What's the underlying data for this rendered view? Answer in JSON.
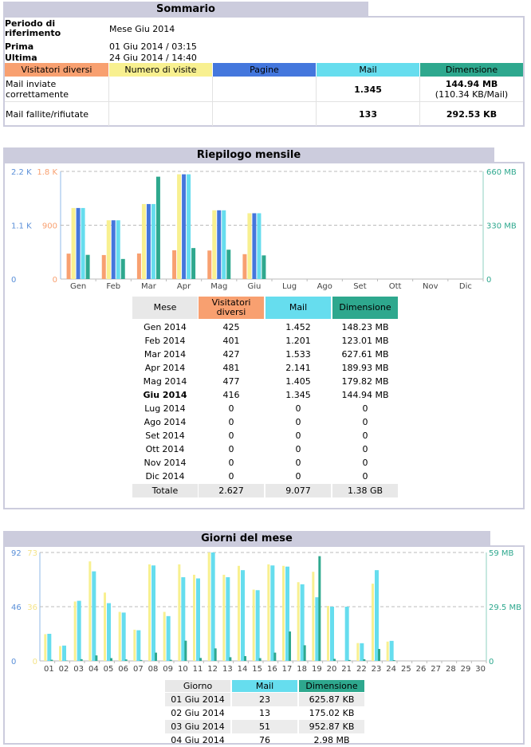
{
  "summary": {
    "title": "Sommario",
    "period_label": "Periodo di riferimento",
    "period_label_1": "Periodo di",
    "period_label_2": "riferimento",
    "period_value": "Mese Giu 2014",
    "first_label": "Prima",
    "first_value": "01 Giu 2014 / 03:15",
    "last_label": "Ultima",
    "last_value": "24 Giu 2014 / 14:40",
    "headers": [
      "Visitatori diversi",
      "Numero di visite",
      "Pagine",
      "Mail",
      "Dimensione"
    ],
    "rows": [
      {
        "label_1": "Mail inviate",
        "label_2": "correttamente",
        "mail": "1.345",
        "size": "144.94 MB",
        "size_sub": "(110.34 KB/Mail)"
      },
      {
        "label_1": "Mail fallite/rifiutate",
        "label_2": "",
        "mail": "133",
        "size": "292.53 KB",
        "size_sub": ""
      }
    ]
  },
  "colors": {
    "visitors": "#f8a070",
    "visits": "#f8f090",
    "pages": "#4477dd",
    "mail": "#66ddee",
    "size": "#2ea88e",
    "frame": "#ccccdd"
  },
  "monthly": {
    "title": "Riepilogo mensile",
    "table_headers": [
      "Mese",
      "Visitatori diversi",
      "Mail",
      "Dimensione"
    ],
    "rows": [
      [
        "Gen 2014",
        "425",
        "1.452",
        "148.23 MB"
      ],
      [
        "Feb 2014",
        "401",
        "1.201",
        "123.01 MB"
      ],
      [
        "Mar 2014",
        "427",
        "1.533",
        "627.61 MB"
      ],
      [
        "Apr 2014",
        "481",
        "2.141",
        "189.93 MB"
      ],
      [
        "Mag 2014",
        "477",
        "1.405",
        "179.82 MB"
      ],
      [
        "Giu 2014",
        "416",
        "1.345",
        "144.94 MB"
      ],
      [
        "Lug 2014",
        "0",
        "0",
        "0"
      ],
      [
        "Ago 2014",
        "0",
        "0",
        "0"
      ],
      [
        "Set 2014",
        "0",
        "0",
        "0"
      ],
      [
        "Ott 2014",
        "0",
        "0",
        "0"
      ],
      [
        "Nov 2014",
        "0",
        "0",
        "0"
      ],
      [
        "Dic 2014",
        "0",
        "0",
        "0"
      ]
    ],
    "total": [
      "Totale",
      "2.627",
      "9.077",
      "1.38 GB"
    ]
  },
  "daily": {
    "title": "Giorni del mese",
    "table_headers": [
      "Giorno",
      "Mail",
      "Dimensione"
    ],
    "rows": [
      [
        "01 Giu 2014",
        "23",
        "625.87 KB"
      ],
      [
        "02 Giu 2014",
        "13",
        "175.02 KB"
      ],
      [
        "03 Giu 2014",
        "51",
        "952.87 KB"
      ],
      [
        "04 Giu 2014",
        "76",
        "2.98 MB"
      ]
    ]
  },
  "chart_data": [
    {
      "type": "bar",
      "categories": [
        "Gen",
        "Feb",
        "Mar",
        "Apr",
        "Mag",
        "Giu",
        "Lug",
        "Ago",
        "Set",
        "Ott",
        "Nov",
        "Dic"
      ],
      "axis_left_outer": {
        "ticks": [
          "0",
          "1.1 K",
          "2.2 K"
        ],
        "max": 2200
      },
      "axis_left_inner": {
        "ticks": [
          "0",
          "900",
          "1.8 K"
        ],
        "max": 1800
      },
      "axis_right": {
        "ticks": [
          "0",
          "330 MB",
          "660 MB"
        ],
        "max": 660
      },
      "series": [
        {
          "name": "Visitatori diversi",
          "axis": "left_inner",
          "values": [
            425,
            401,
            427,
            481,
            477,
            416,
            0,
            0,
            0,
            0,
            0,
            0
          ]
        },
        {
          "name": "Numero di visite",
          "axis": "left_outer",
          "values": [
            1452,
            1201,
            1533,
            2141,
            1405,
            1345,
            0,
            0,
            0,
            0,
            0,
            0
          ]
        },
        {
          "name": "Pagine",
          "axis": "left_outer",
          "values": [
            1452,
            1201,
            1533,
            2141,
            1405,
            1345,
            0,
            0,
            0,
            0,
            0,
            0
          ]
        },
        {
          "name": "Mail",
          "axis": "left_outer",
          "values": [
            1452,
            1201,
            1533,
            2141,
            1405,
            1345,
            0,
            0,
            0,
            0,
            0,
            0
          ]
        },
        {
          "name": "Dimensione",
          "axis": "right",
          "values": [
            148.23,
            123.01,
            627.61,
            189.93,
            179.82,
            144.94,
            0,
            0,
            0,
            0,
            0,
            0
          ]
        }
      ],
      "grid": true
    },
    {
      "type": "bar",
      "categories": [
        "01",
        "02",
        "03",
        "04",
        "05",
        "06",
        "07",
        "08",
        "09",
        "10",
        "11",
        "12",
        "13",
        "14",
        "15",
        "16",
        "17",
        "18",
        "19",
        "20",
        "21",
        "22",
        "23",
        "24",
        "25",
        "26",
        "27",
        "28",
        "29",
        "30"
      ],
      "axis_left_outer": {
        "ticks": [
          "0",
          "46",
          "92"
        ],
        "max": 92
      },
      "axis_left_inner": {
        "ticks": [
          "0",
          "36",
          "73"
        ],
        "max": 73
      },
      "axis_right": {
        "ticks": [
          "0",
          "29.5 MB",
          "59 MB"
        ],
        "max": 59
      },
      "series": [
        {
          "name": "Numero di visite",
          "axis": "left_inner",
          "values": [
            18,
            10,
            40,
            67,
            46,
            33,
            21,
            65,
            33,
            65,
            58,
            73,
            58,
            64,
            48,
            65,
            64,
            53,
            60,
            37,
            0,
            12,
            52,
            13,
            0,
            0,
            0,
            0,
            0,
            0
          ]
        },
        {
          "name": "Mail",
          "axis": "left_outer",
          "values": [
            23,
            13,
            51,
            76,
            49,
            41,
            26,
            81,
            38,
            71,
            70,
            92,
            71,
            77,
            60,
            81,
            80,
            65,
            54,
            46,
            46,
            15,
            77,
            17,
            0,
            0,
            0,
            0,
            0,
            0
          ]
        },
        {
          "name": "Dimensione",
          "axis": "right",
          "values": [
            0.61,
            0.17,
            0.93,
            2.98,
            1.5,
            0.8,
            0.5,
            4.5,
            0.6,
            11.0,
            1.6,
            6.8,
            2.0,
            2.6,
            1.5,
            4.5,
            16.0,
            8.5,
            57.0,
            1.1,
            0.5,
            0.9,
            6.5,
            0.4,
            0,
            0,
            0,
            0,
            0,
            0
          ]
        }
      ],
      "grid": true
    }
  ]
}
